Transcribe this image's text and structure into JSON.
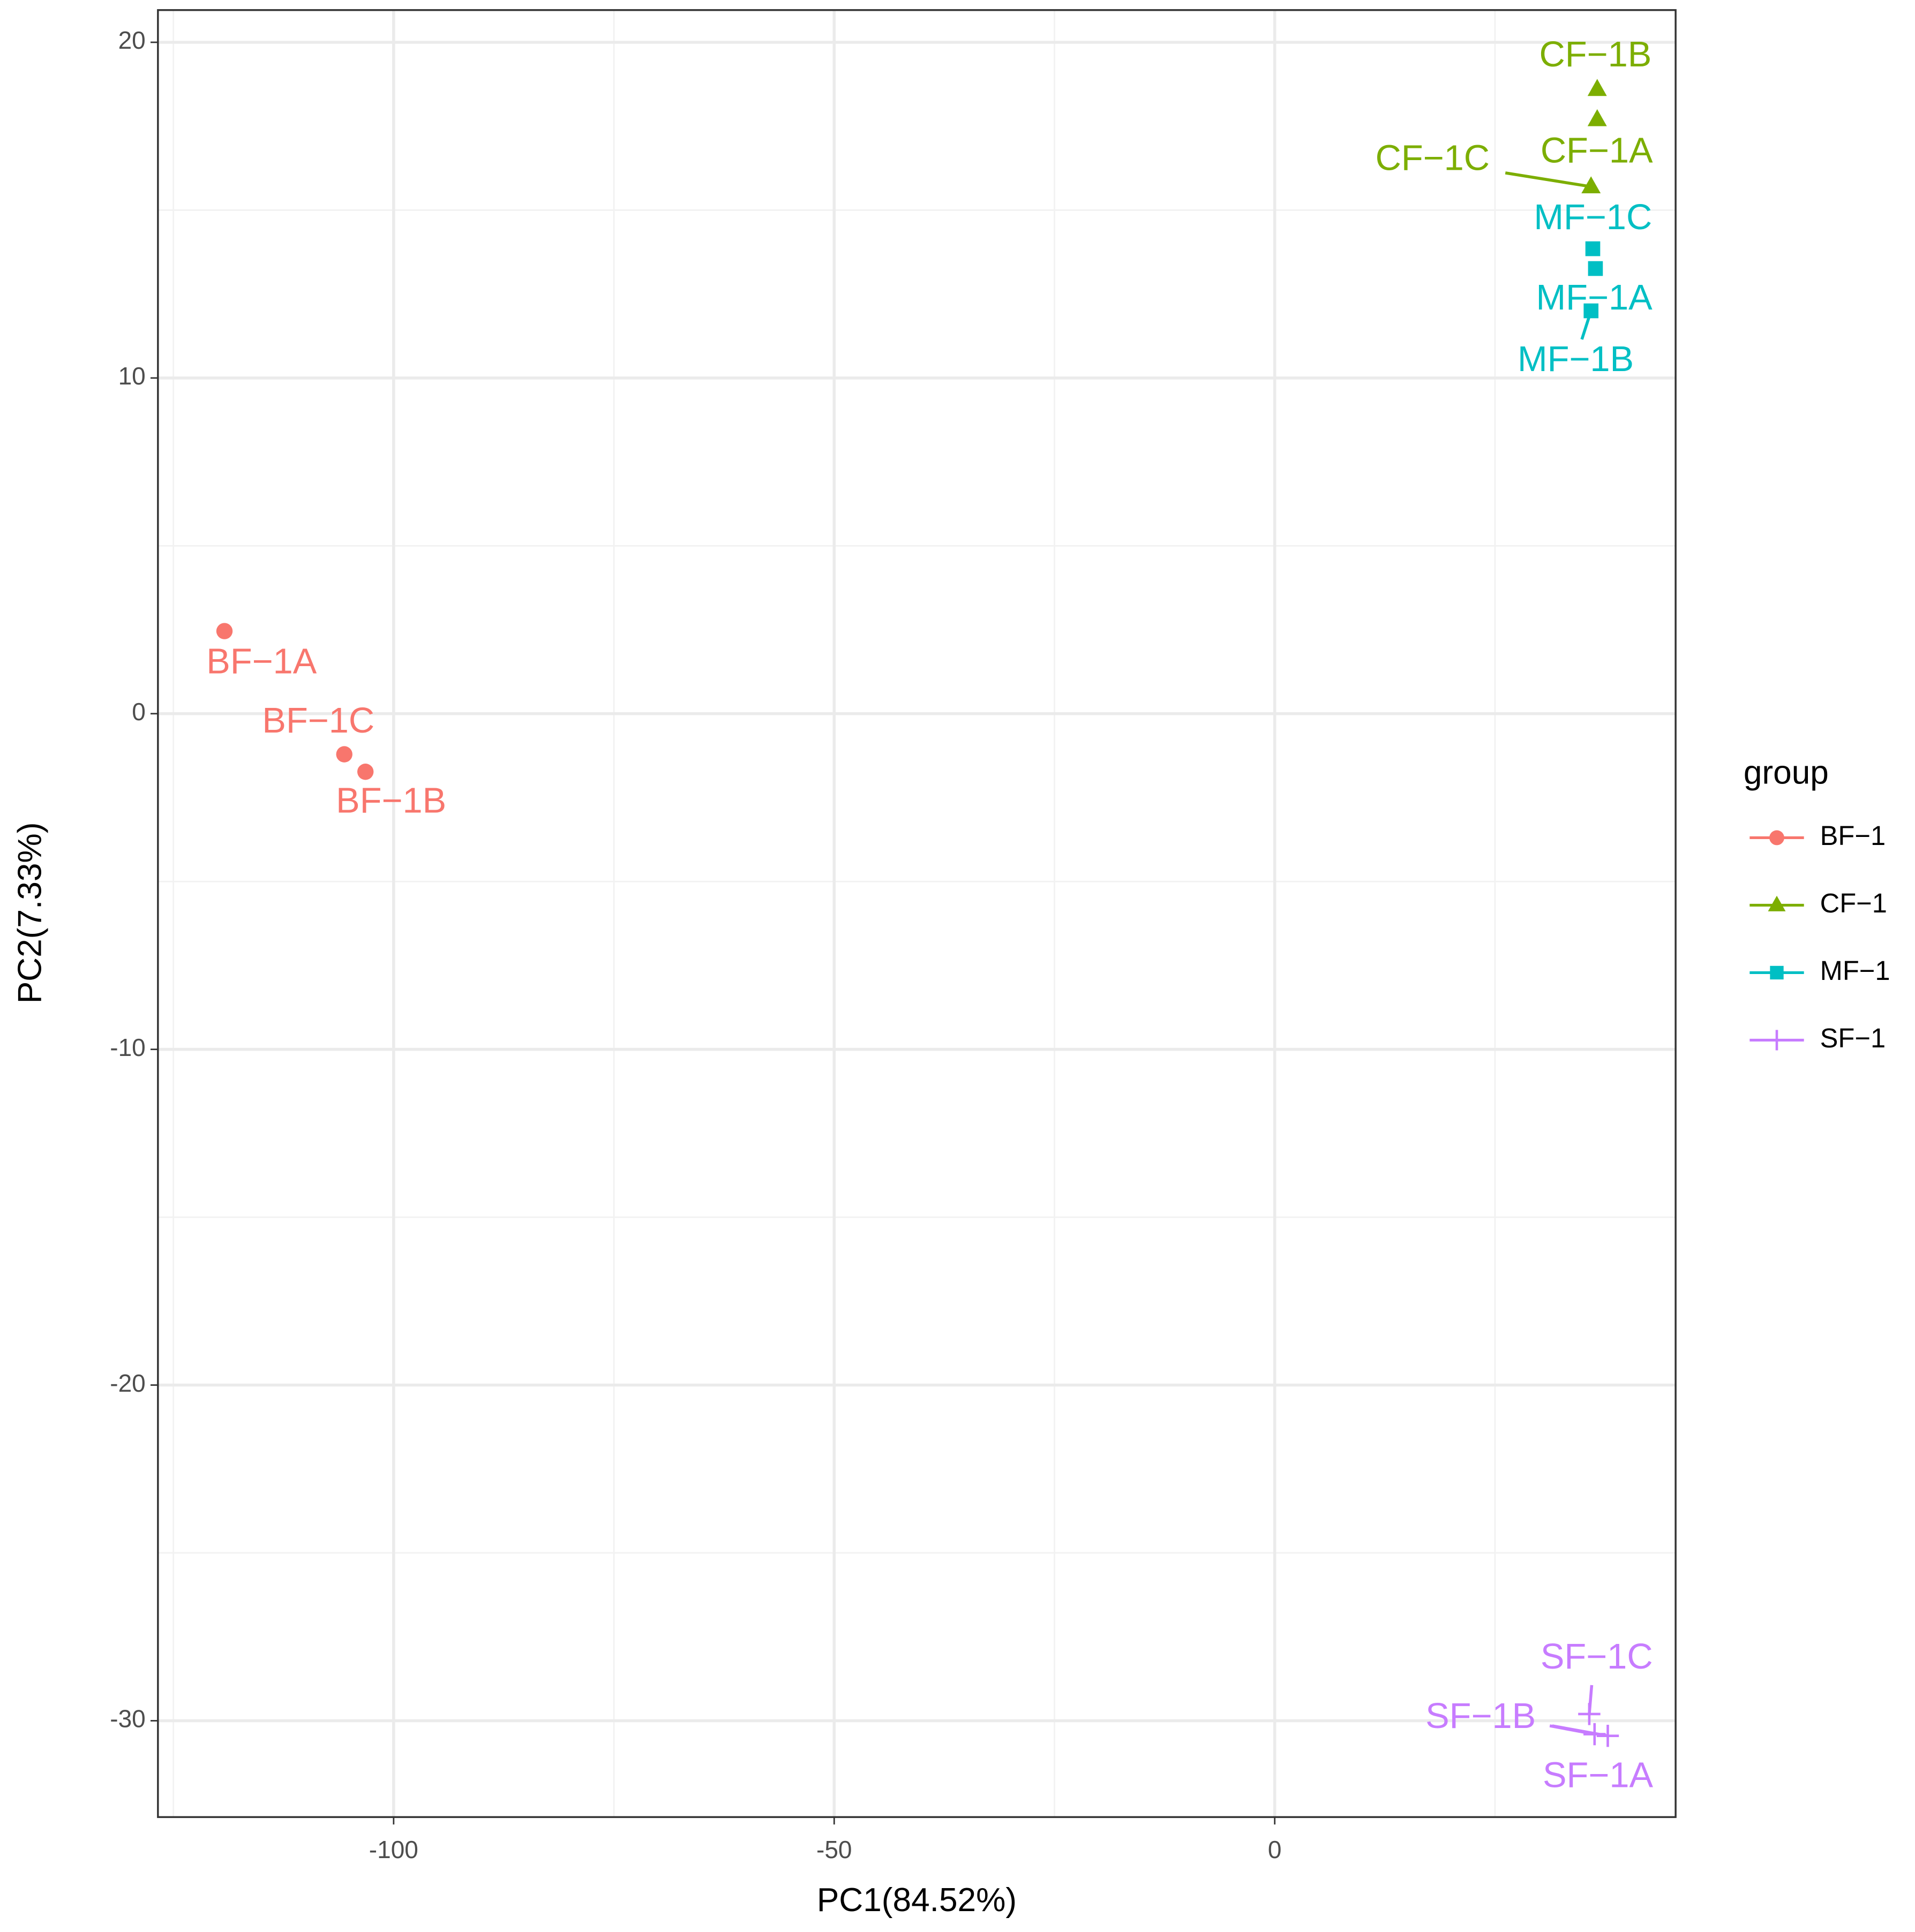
{
  "chart_data": {
    "type": "scatter",
    "xlabel": "PC1(84.52%)",
    "ylabel": "PC2(7.33%)",
    "xlim": [
      -126.75,
      45.5
    ],
    "ylim": [
      -32.87,
      20.96
    ],
    "xticks": [
      -100,
      -50,
      0
    ],
    "yticks": [
      -30,
      -20,
      -10,
      0,
      10,
      20
    ],
    "grid": true,
    "legend_title": "group",
    "legend": "right",
    "series": [
      {
        "name": "BF−1",
        "color": "#F8766D",
        "marker": "circle",
        "labels": [
          "BF−1A",
          "BF−1C",
          "BF−1B"
        ],
        "x": [
          -119.2,
          -105.6,
          -103.2
        ],
        "values": [
          2.46,
          -1.21,
          -1.73
        ]
      },
      {
        "name": "CF−1",
        "color": "#7CAE00",
        "marker": "triangle",
        "labels": [
          "CF−1B",
          "CF−1A",
          "CF−1C"
        ],
        "x": [
          36.6,
          36.6,
          35.9
        ],
        "values": [
          18.6,
          17.7,
          15.7
        ]
      },
      {
        "name": "MF−1",
        "color": "#00BFC4",
        "marker": "square",
        "labels": [
          "MF−1C",
          "MF−1A",
          "MF−1B"
        ],
        "x": [
          36.1,
          36.4,
          35.9
        ],
        "values": [
          13.85,
          13.26,
          12.0
        ]
      },
      {
        "name": "SF−1",
        "color": "#C77CFF",
        "marker": "plus",
        "labels": [
          "SF−1C",
          "SF−1B",
          "SF−1A"
        ],
        "x": [
          35.7,
          36.3,
          37.8
        ],
        "values": [
          -29.8,
          -30.4,
          -30.45
        ]
      }
    ]
  }
}
